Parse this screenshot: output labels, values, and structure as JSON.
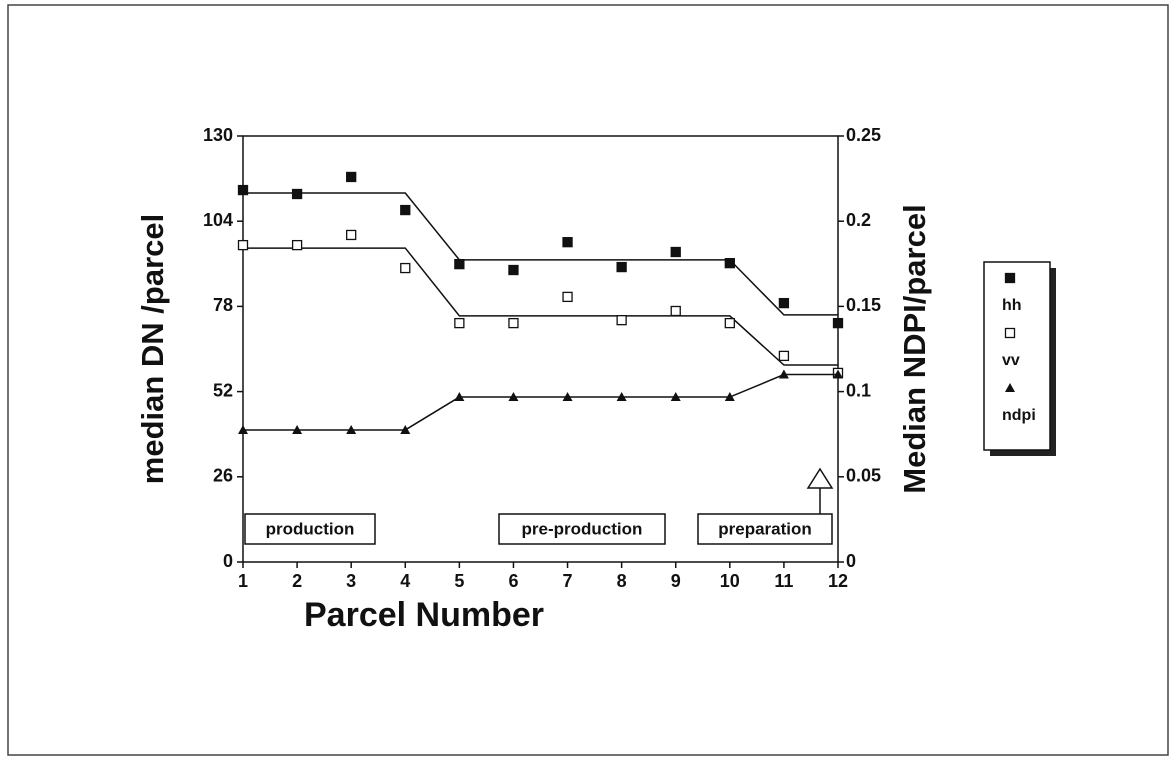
{
  "chart_data": {
    "type": "scatter",
    "xlabel": "Parcel Number",
    "ylabel": "median DN /parcel",
    "y2label": "Median NDPI/parcel",
    "x": [
      1,
      2,
      3,
      4,
      5,
      6,
      7,
      8,
      9,
      10,
      11,
      12
    ],
    "xlim": [
      1,
      12
    ],
    "xticks": [
      1,
      2,
      3,
      4,
      5,
      6,
      7,
      8,
      9,
      10,
      11,
      12
    ],
    "ylim": [
      0,
      130
    ],
    "yticks": [
      0,
      26,
      52,
      78,
      104,
      130
    ],
    "y2lim": [
      0,
      0.25
    ],
    "y2ticks": [
      0,
      0.05,
      0.1,
      0.15,
      0.2,
      0.25
    ],
    "series": [
      {
        "name": "hh",
        "color": "#111111",
        "marker": "filled-square",
        "values": [
          113.5,
          112.3,
          117.5,
          107.4,
          90.9,
          89.1,
          97.6,
          90,
          94.6,
          91.2,
          79,
          72.9
        ],
        "fit": [
          112.6,
          112.6,
          112.6,
          112.6,
          92.2,
          92.2,
          92.2,
          92.2,
          92.2,
          92.2,
          75.4,
          75.4
        ]
      },
      {
        "name": "vv",
        "color": "#111111",
        "marker": "open-square",
        "values": [
          96.7,
          96.7,
          99.8,
          89.7,
          72.9,
          72.9,
          80.9,
          73.8,
          76.6,
          72.9,
          62.9,
          57.7
        ],
        "fit": [
          95.8,
          95.8,
          95.8,
          95.8,
          75.1,
          75.1,
          75.1,
          75.1,
          75.1,
          75.1,
          60.1,
          60.1
        ]
      },
      {
        "name": "ndpi",
        "color": "#111111",
        "marker": "filled-triangle",
        "axis": "y2",
        "values": [
          0.0775,
          0.0775,
          0.0775,
          0.0775,
          0.0968,
          0.0968,
          0.0968,
          0.0968,
          0.0968,
          0.0968,
          0.11,
          0.11
        ],
        "fit": [
          0.0775,
          0.0775,
          0.0775,
          0.0775,
          0.0968,
          0.0968,
          0.0968,
          0.0968,
          0.0968,
          0.0968,
          0.11,
          0.11
        ]
      }
    ],
    "annotations": [
      "production",
      "pre-production",
      "preparation"
    ]
  }
}
